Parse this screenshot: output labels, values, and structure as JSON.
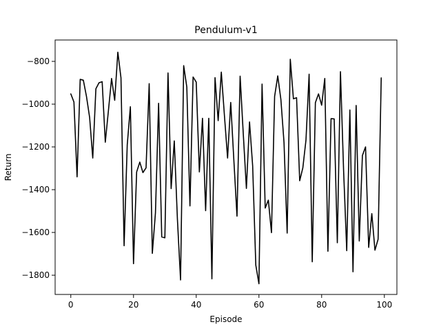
{
  "chart_data": {
    "type": "line",
    "title": "Pendulum-v1",
    "xlabel": "Episode",
    "ylabel": "Return",
    "xlim": [
      -5,
      104
    ],
    "ylim": [
      -1890,
      -700
    ],
    "xticks": [
      0,
      20,
      40,
      60,
      80,
      100
    ],
    "yticks": [
      -1800,
      -1600,
      -1400,
      -1200,
      -1000,
      -800
    ],
    "grid": false,
    "series": [
      {
        "color": "#000000",
        "x": [
          0,
          1,
          2,
          3,
          4,
          5,
          6,
          7,
          8,
          9,
          10,
          11,
          12,
          13,
          14,
          15,
          16,
          17,
          18,
          19,
          20,
          21,
          22,
          23,
          24,
          25,
          26,
          27,
          28,
          29,
          30,
          31,
          32,
          33,
          34,
          35,
          36,
          37,
          38,
          39,
          40,
          41,
          42,
          43,
          44,
          45,
          46,
          47,
          48,
          49,
          50,
          51,
          52,
          53,
          54,
          55,
          56,
          57,
          58,
          59,
          60,
          61,
          62,
          63,
          64,
          65,
          66,
          67,
          68,
          69,
          70,
          71,
          72,
          73,
          74,
          75,
          76,
          77,
          78,
          79,
          80,
          81,
          82,
          83,
          84,
          85,
          86,
          87,
          88,
          89,
          90,
          91,
          92,
          93,
          94,
          95,
          96,
          97,
          98,
          99
        ],
        "y": [
          -952,
          -990,
          -1340,
          -884,
          -888,
          -964,
          -1062,
          -1252,
          -928,
          -900,
          -895,
          -1178,
          -1030,
          -880,
          -982,
          -757,
          -877,
          -1662,
          -1190,
          -1012,
          -1746,
          -1317,
          -1271,
          -1320,
          -1298,
          -904,
          -1698,
          -1508,
          -996,
          -1621,
          -1625,
          -854,
          -1395,
          -1172,
          -1538,
          -1822,
          -820,
          -920,
          -1476,
          -873,
          -897,
          -1317,
          -1066,
          -1498,
          -1066,
          -1817,
          -876,
          -1077,
          -850,
          -1054,
          -1252,
          -992,
          -1262,
          -1524,
          -869,
          -1138,
          -1394,
          -1083,
          -1289,
          -1753,
          -1840,
          -906,
          -1486,
          -1449,
          -1601,
          -964,
          -868,
          -978,
          -1180,
          -1603,
          -790,
          -975,
          -970,
          -1358,
          -1298,
          -1168,
          -860,
          -1737,
          -993,
          -952,
          -1005,
          -880,
          -1688,
          -1068,
          -1069,
          -1648,
          -848,
          -1310,
          -1685,
          -1027,
          -1784,
          -1006,
          -1640,
          -1240,
          -1200,
          -1670,
          -1512,
          -1683,
          -1632,
          -877
        ]
      }
    ]
  }
}
